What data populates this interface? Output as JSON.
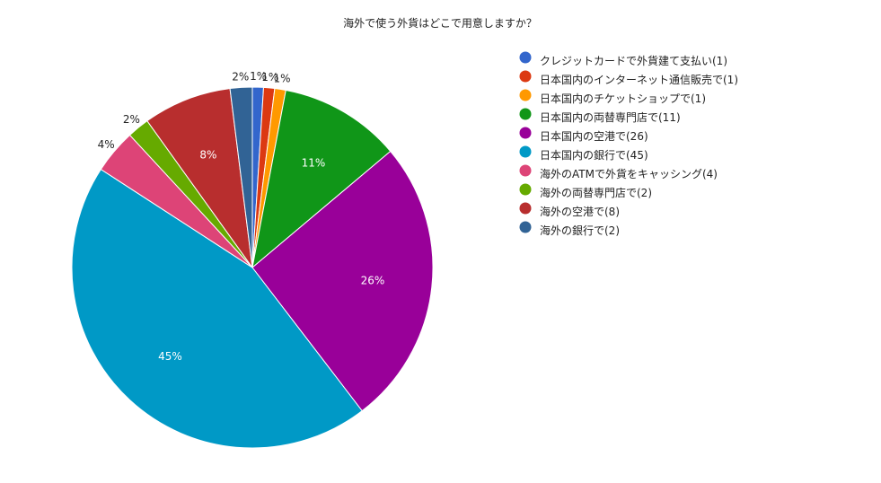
{
  "chart_data": {
    "type": "pie",
    "title": "海外で使う外貨はどこで用意しますか？",
    "legend_position": "right",
    "slices": [
      {
        "label": "クレジットカードで外貨建て支払い(1)",
        "value": 1,
        "percent_label": "1%",
        "color": "#3366cc"
      },
      {
        "label": "日本国内のインターネット通信販売で(1)",
        "value": 1,
        "percent_label": "1%",
        "color": "#dc3912"
      },
      {
        "label": "日本国内のチケットショップで(1)",
        "value": 1,
        "percent_label": "1%",
        "color": "#ff9900"
      },
      {
        "label": "日本国内の両替専門店で(11)",
        "value": 11,
        "percent_label": "11%",
        "color": "#109618"
      },
      {
        "label": "日本国内の空港で(26)",
        "value": 26,
        "percent_label": "26%",
        "color": "#990099"
      },
      {
        "label": "日本国内の銀行で(45)",
        "value": 45,
        "percent_label": "45%",
        "color": "#0099c6"
      },
      {
        "label": "海外のATMで外貨をキャッシング(4)",
        "value": 4,
        "percent_label": "4%",
        "color": "#dd4477"
      },
      {
        "label": "海外の両替専門店で(2)",
        "value": 2,
        "percent_label": "2%",
        "color": "#66aa00"
      },
      {
        "label": "海外の空港で(8)",
        "value": 8,
        "percent_label": "8%",
        "color": "#b82e2e"
      },
      {
        "label": "海外の銀行で(2)",
        "value": 2,
        "percent_label": "2%",
        "color": "#316395"
      }
    ]
  }
}
